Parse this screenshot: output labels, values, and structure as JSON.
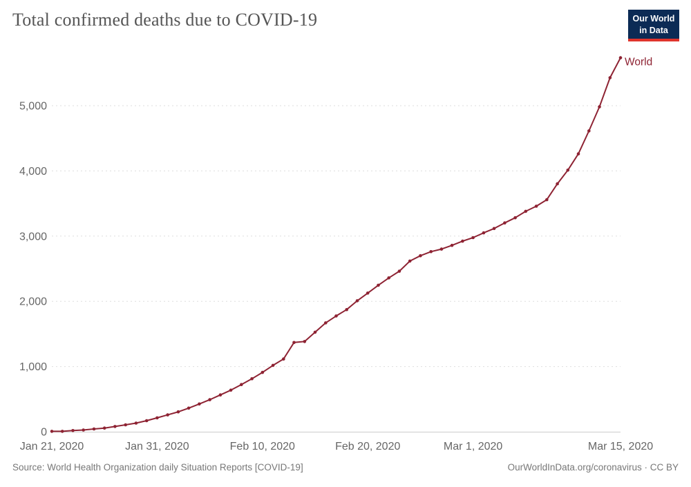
{
  "header": {
    "title": "Total confirmed deaths due to COVID-19",
    "logo": {
      "line1": "Our World",
      "line2": "in Data",
      "bg_color": "#0c2b55",
      "accent_color": "#e0342c"
    }
  },
  "chart_data": {
    "type": "line",
    "title": "Total confirmed deaths due to COVID-19",
    "xlabel": "",
    "ylabel": "",
    "grid": "horizontal-dashed",
    "legend_position": "end-of-line-label",
    "y_ticks": [
      0,
      1000,
      2000,
      3000,
      4000,
      5000
    ],
    "y_tick_labels": [
      "0",
      "1,000",
      "2,000",
      "3,000",
      "4,000",
      "5,000"
    ],
    "ylim": [
      0,
      5800
    ],
    "x_tick_labels": [
      "Jan 21, 2020",
      "Jan 31, 2020",
      "Feb 10, 2020",
      "Feb 20, 2020",
      "Mar 1, 2020",
      "Mar 15, 2020"
    ],
    "x_tick_day_index": [
      0,
      10,
      20,
      30,
      40,
      54
    ],
    "series": [
      {
        "name": "World",
        "color": "#8e2333",
        "x": [
          "2020-01-21",
          "2020-01-22",
          "2020-01-23",
          "2020-01-24",
          "2020-01-25",
          "2020-01-26",
          "2020-01-27",
          "2020-01-28",
          "2020-01-29",
          "2020-01-30",
          "2020-01-31",
          "2020-02-01",
          "2020-02-02",
          "2020-02-03",
          "2020-02-04",
          "2020-02-05",
          "2020-02-06",
          "2020-02-07",
          "2020-02-08",
          "2020-02-09",
          "2020-02-10",
          "2020-02-11",
          "2020-02-12",
          "2020-02-13",
          "2020-02-14",
          "2020-02-15",
          "2020-02-16",
          "2020-02-17",
          "2020-02-18",
          "2020-02-19",
          "2020-02-20",
          "2020-02-21",
          "2020-02-22",
          "2020-02-23",
          "2020-02-24",
          "2020-02-25",
          "2020-02-26",
          "2020-02-27",
          "2020-02-28",
          "2020-02-29",
          "2020-03-01",
          "2020-03-02",
          "2020-03-03",
          "2020-03-04",
          "2020-03-05",
          "2020-03-06",
          "2020-03-07",
          "2020-03-08",
          "2020-03-09",
          "2020-03-10",
          "2020-03-11",
          "2020-03-12",
          "2020-03-13",
          "2020-03-14",
          "2020-03-15"
        ],
        "values": [
          6,
          6,
          18,
          26,
          42,
          56,
          81,
          106,
          132,
          170,
          213,
          259,
          305,
          362,
          426,
          492,
          565,
          638,
          724,
          813,
          910,
          1018,
          1115,
          1369,
          1383,
          1526,
          1669,
          1775,
          1873,
          2009,
          2126,
          2247,
          2359,
          2462,
          2618,
          2699,
          2762,
          2801,
          2858,
          2923,
          2977,
          3050,
          3117,
          3202,
          3282,
          3380,
          3459,
          3558,
          3802,
          4012,
          4262,
          4613,
          4983,
          5429,
          5735
        ]
      }
    ],
    "colors": {
      "gridline": "#dddddd",
      "axis_line": "#cccccc",
      "tick_label": "#666666"
    }
  },
  "footer": {
    "source": "Source: World Health Organization daily Situation Reports [COVID-19]",
    "attribution": "OurWorldInData.org/coronavirus · CC BY"
  }
}
